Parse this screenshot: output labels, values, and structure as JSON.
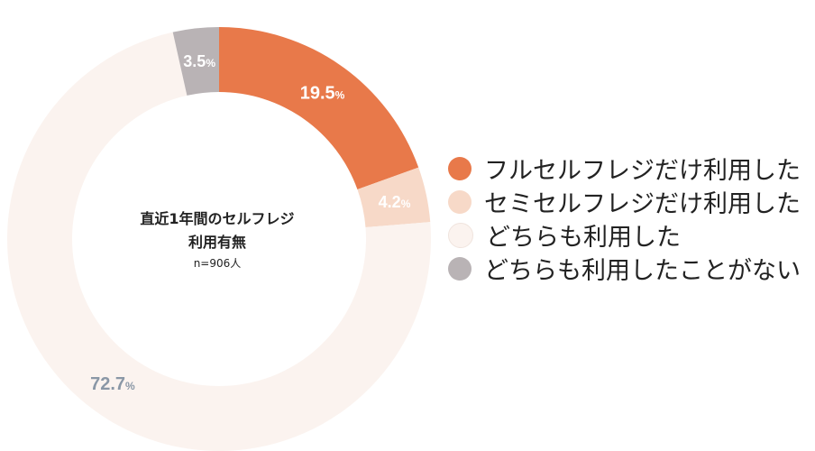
{
  "chart_data": {
    "type": "pie",
    "donut": true,
    "categories": [
      "フルセルフレジだけ利用した",
      "セミセルフレジだけ利用した",
      "どちらも利用した",
      "どちらも利用したことがない"
    ],
    "values": [
      19.5,
      4.2,
      72.7,
      3.5
    ],
    "value_unit": "%",
    "colors": [
      "#E8794A",
      "#F7D9C8",
      "#FBF3EF",
      "#B9B3B5"
    ],
    "label_colors": [
      "#ffffff",
      "#ffffff",
      "#8A97A6",
      "#ffffff"
    ],
    "center": {
      "line1": "直近1年間のセルフレジ",
      "line2": "利用有無",
      "sample": "n=906人"
    },
    "legend_position": "right"
  }
}
